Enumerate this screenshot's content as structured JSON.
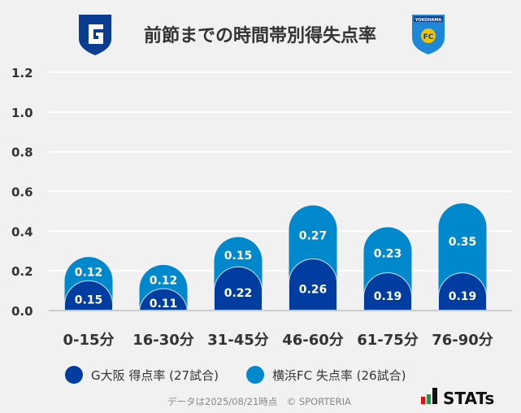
{
  "chart_data": {
    "type": "bar",
    "stacked": true,
    "title": "前節までの時間帯別得失点率",
    "categories": [
      "0-15分",
      "16-30分",
      "31-45分",
      "46-60分",
      "61-75分",
      "76-90分"
    ],
    "series": [
      {
        "name": "G大阪 得点率 (27試合)",
        "color": "#003da0",
        "values": [
          0.15,
          0.11,
          0.22,
          0.26,
          0.19,
          0.19
        ]
      },
      {
        "name": "横浜FC 失点率 (26試合)",
        "color": "#0088cc",
        "values": [
          0.12,
          0.12,
          0.15,
          0.27,
          0.23,
          0.35
        ]
      }
    ],
    "yticks": [
      "0.0",
      "0.2",
      "0.4",
      "0.6",
      "0.8",
      "1.0",
      "1.2"
    ],
    "ylim": [
      0,
      1.2
    ],
    "grid": true,
    "legend": "bottom"
  },
  "footer": {
    "note": "データは2025/08/21時点　© SPORTERIA",
    "brand": "STATs"
  },
  "logos": {
    "home": "G",
    "away": "YOKOHAMA FC"
  }
}
